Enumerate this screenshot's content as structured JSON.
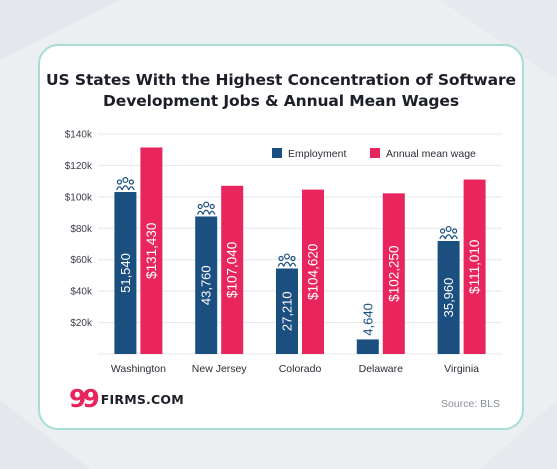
{
  "title_lines": [
    "US States With the Highest Concentration of Software",
    "Development Jobs & Annual Mean Wages"
  ],
  "source": "Source: BLS",
  "logo": {
    "mark": "99",
    "text": "FIRMS.COM"
  },
  "colors": {
    "employment": "#1b4f80",
    "wage": "#e8255c",
    "border": "#a8ddd6"
  },
  "icons": {
    "employment_marker": "people-group-icon"
  },
  "chart_data": {
    "type": "bar",
    "categories": [
      "Washington",
      "New Jersey",
      "Colorado",
      "Delaware",
      "Virginia"
    ],
    "series": [
      {
        "name": "Employment",
        "values": [
          51540,
          43760,
          27210,
          4640,
          35960
        ],
        "labels": [
          "51,540",
          "43,760",
          "27,210",
          "4,640",
          "35,960"
        ]
      },
      {
        "name": "Annual mean wage",
        "values": [
          131430,
          107040,
          104620,
          102250,
          111010
        ],
        "labels": [
          "$131,430",
          "$107,040",
          "$104,620",
          "$102,250",
          "$111,010"
        ]
      }
    ],
    "y_ticks": [
      "$20k",
      "$40k",
      "$60k",
      "$80k",
      "$100k",
      "$120k",
      "$140k"
    ],
    "ylim": [
      0,
      140000
    ],
    "employment_scale": 2,
    "legend_position": "top-right",
    "grid": true
  }
}
